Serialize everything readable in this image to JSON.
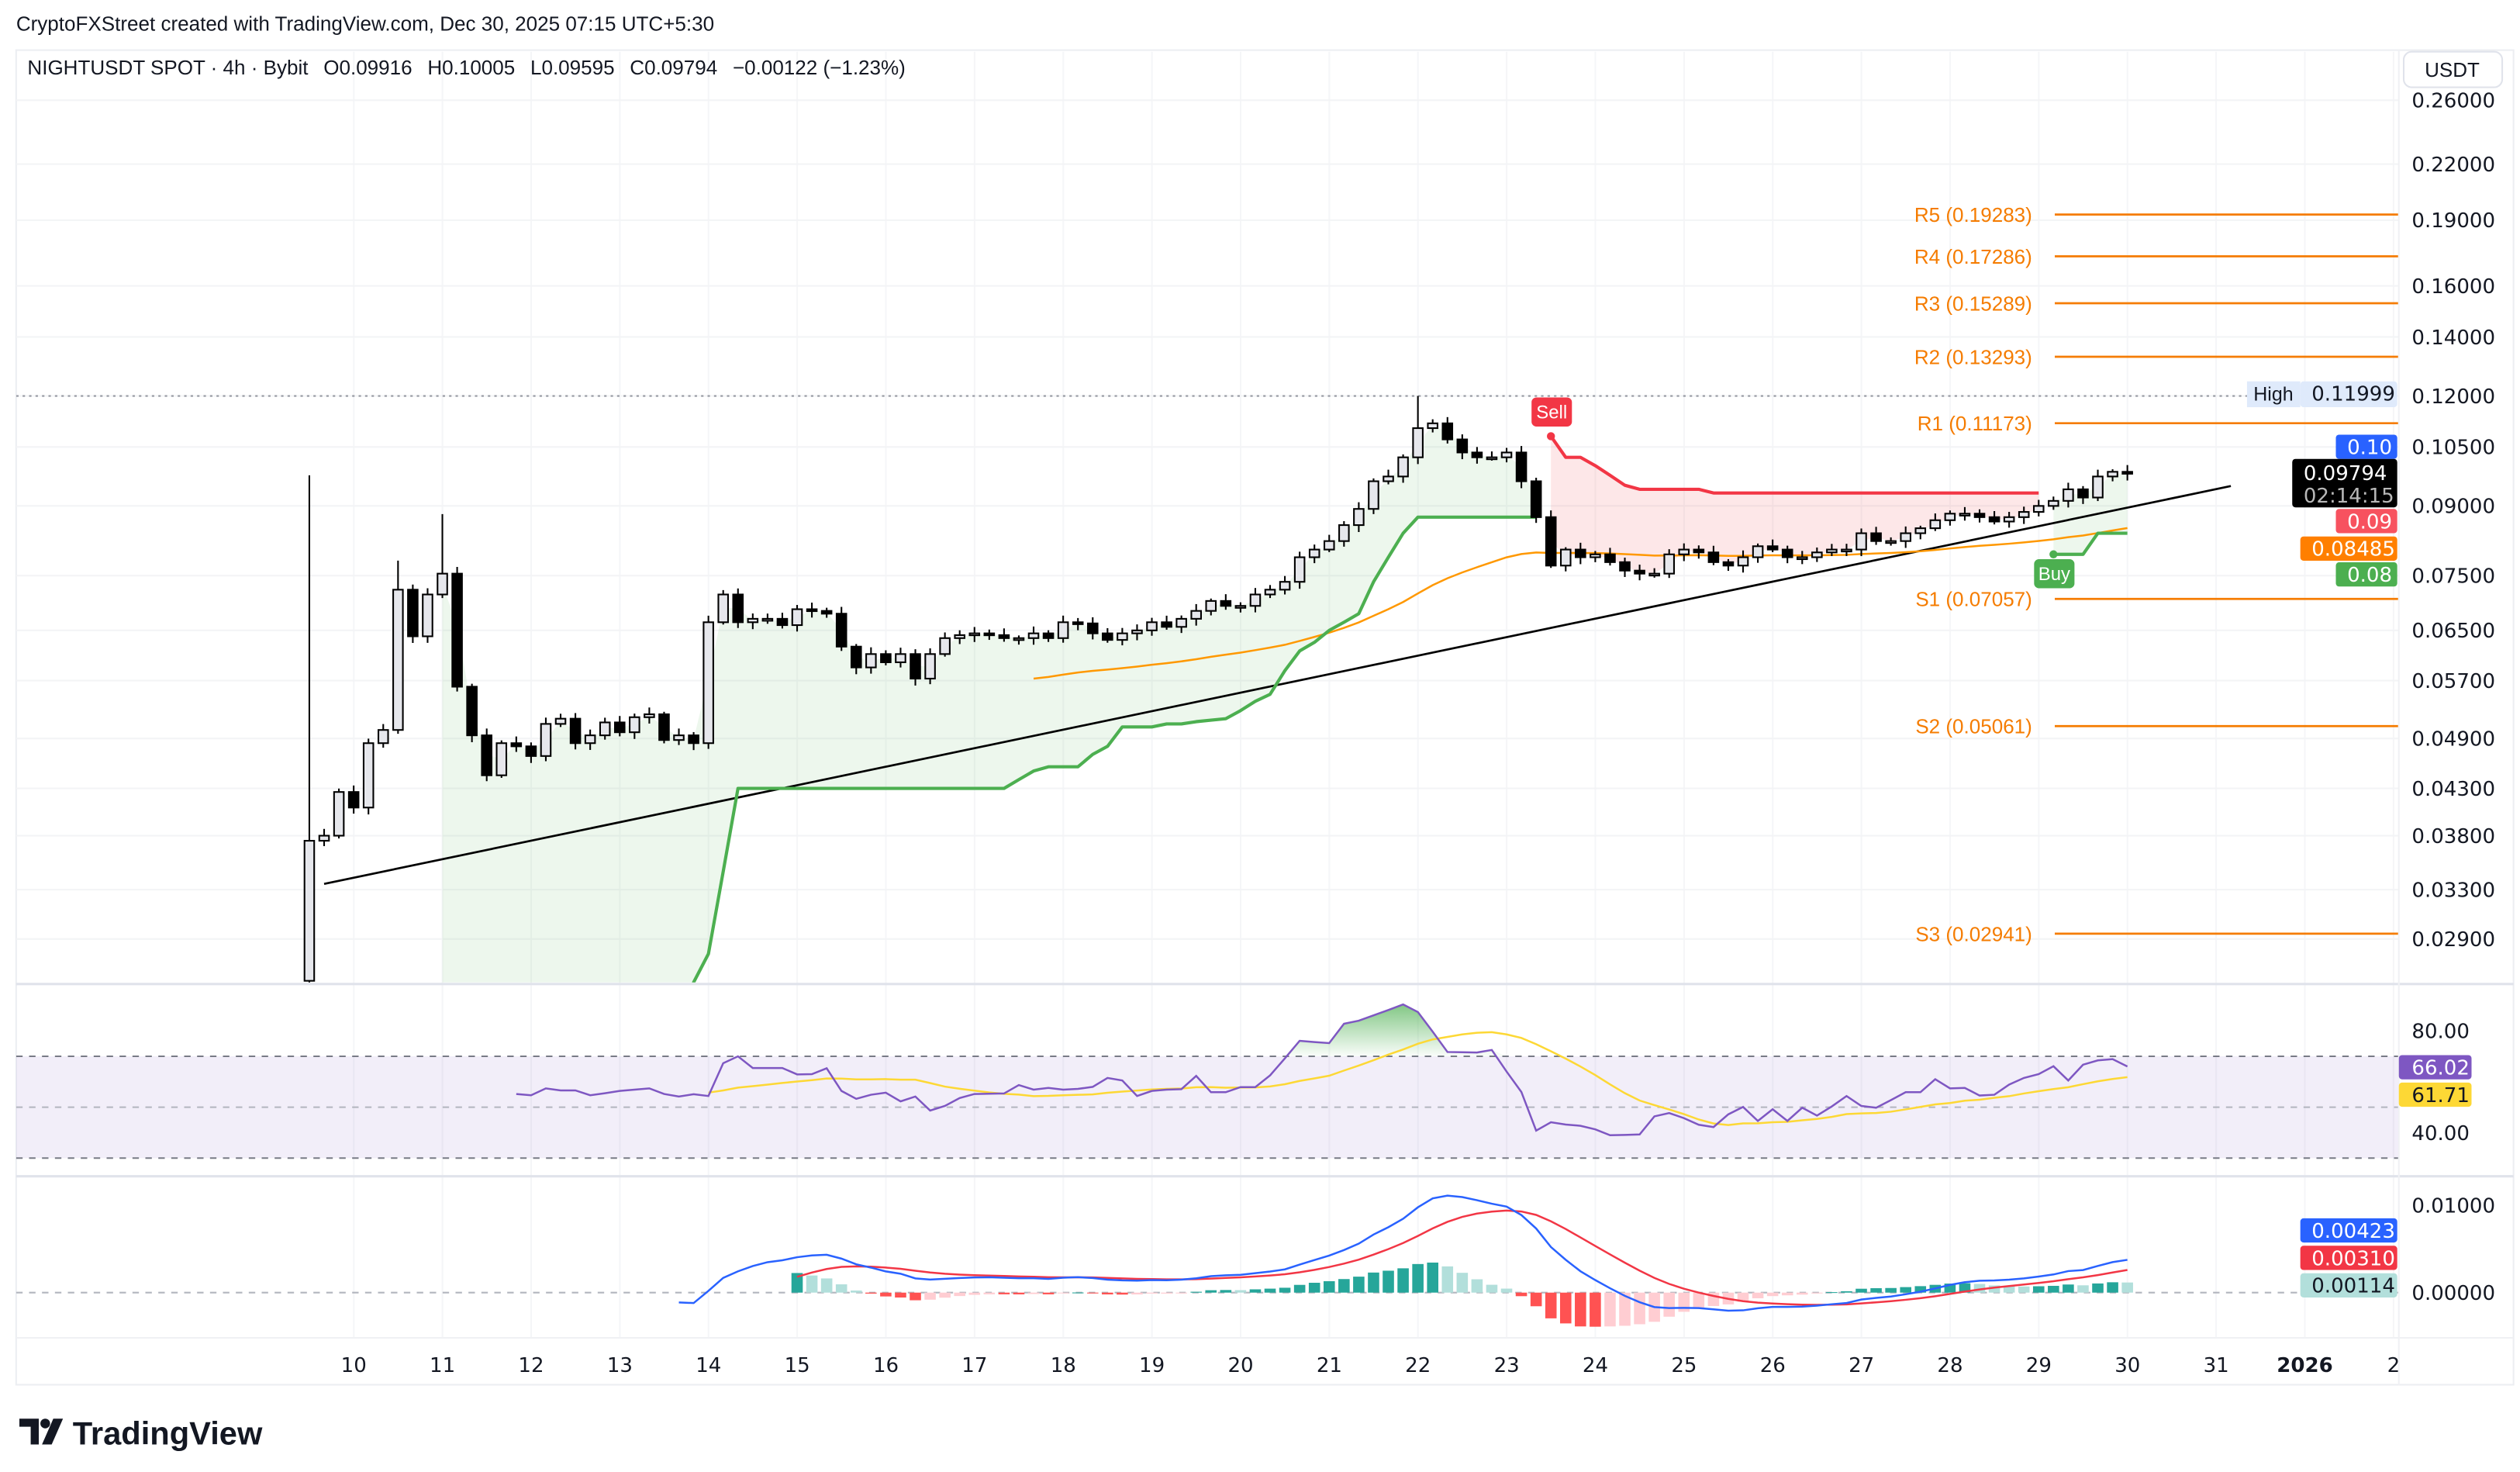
{
  "attribution": "CryptoFXStreet created with TradingView.com, Dec 30, 2025 07:15 UTC+5:30",
  "legend": {
    "symbol": "NIGHTUSDT SPOT · 4h · Bybit",
    "open": "O0.09916",
    "high": "H0.10005",
    "low": "L0.09595",
    "close": "C0.09794",
    "change": "−0.00122 (−1.23%)"
  },
  "currency_button": "USDT",
  "logo_text": "TradingView",
  "colors": {
    "bull_body": "#e6e7ec",
    "bear_body": "#000000",
    "supertrend_up": "#4caf50",
    "supertrend_down": "#f23645",
    "ema": "#ff9800",
    "pivot": "#f57c00",
    "rsi": "#7e57c2",
    "rsi_ma": "#fdd835",
    "macd": "#2962ff",
    "signal": "#f23645",
    "hist_up_strong": "#26a69a",
    "hist_up_weak": "#b2dfdb",
    "hist_down_strong": "#ff5252",
    "hist_down_weak": "#ffcdd2"
  },
  "chart_data": {
    "type": "candlestick",
    "interval": "4h",
    "y_scale": "log",
    "price_axis_ticks": [
      "0.26000",
      "0.22000",
      "0.19000",
      "0.16000",
      "0.14000",
      "0.12000",
      "0.10500",
      "0.09000",
      "0.07500",
      "0.06500",
      "0.05700",
      "0.04900",
      "0.04300",
      "0.03800",
      "0.03300",
      "0.02900"
    ],
    "time_axis_labels": [
      "10",
      "11",
      "12",
      "13",
      "14",
      "15",
      "16",
      "17",
      "18",
      "19",
      "20",
      "21",
      "22",
      "23",
      "24",
      "25",
      "26",
      "27",
      "28",
      "29",
      "30",
      "31",
      "2026",
      "2"
    ],
    "candles": {
      "first_open": 0.026,
      "close": [
        0.0375,
        0.038,
        0.0426,
        0.0409,
        0.0484,
        0.0501,
        0.0723,
        0.064,
        0.0714,
        0.0754,
        0.0561,
        0.0494,
        0.0445,
        0.0484,
        0.048,
        0.0468,
        0.0509,
        0.0516,
        0.0484,
        0.0494,
        0.0511,
        0.0498,
        0.0518,
        0.0522,
        0.0488,
        0.0494,
        0.0484,
        0.0664,
        0.0714,
        0.0664,
        0.067,
        0.067,
        0.0659,
        0.0687,
        0.0684,
        0.0679,
        0.0623,
        0.059,
        0.0611,
        0.0598,
        0.0611,
        0.0573,
        0.0611,
        0.0637,
        0.0642,
        0.0645,
        0.0642,
        0.0637,
        0.0637,
        0.0645,
        0.0637,
        0.0664,
        0.0662,
        0.0645,
        0.0634,
        0.0645,
        0.065,
        0.0664,
        0.0656,
        0.067,
        0.0684,
        0.0702,
        0.0693,
        0.0693,
        0.0714,
        0.0723,
        0.0738,
        0.0787,
        0.0803,
        0.0821,
        0.0856,
        0.0893,
        0.096,
        0.0972,
        0.1022,
        0.1103,
        0.1117,
        0.1071,
        0.1035,
        0.1022,
        0.1022,
        0.1035,
        0.096,
        0.0874,
        0.077,
        0.0803,
        0.0787,
        0.0793,
        0.0777,
        0.076,
        0.0754,
        0.0754,
        0.0793,
        0.0803,
        0.0797,
        0.0777,
        0.077,
        0.0787,
        0.081,
        0.0803,
        0.0787,
        0.0787,
        0.0797,
        0.0803,
        0.0803,
        0.0838,
        0.0821,
        0.0821,
        0.0838,
        0.0849,
        0.0867,
        0.0882,
        0.0882,
        0.0874,
        0.0864,
        0.0874,
        0.0886,
        0.09,
        0.0912,
        0.094,
        0.092,
        0.0972,
        0.0984,
        0.09794
      ],
      "notable_highs": [
        {
          "index": 0,
          "high": 0.0975
        },
        {
          "index": 6,
          "high": 0.078
        },
        {
          "index": 9,
          "high": 0.0881
        },
        {
          "index": 75,
          "high": 0.11999
        }
      ]
    },
    "period_high": {
      "label": "High",
      "value": "0.11999",
      "price": 0.11999
    },
    "pivots": [
      {
        "label": "R5 (0.19283)",
        "price": 0.19283
      },
      {
        "label": "R4 (0.17286)",
        "price": 0.17286
      },
      {
        "label": "R3 (0.15289)",
        "price": 0.15289
      },
      {
        "label": "R2 (0.13293)",
        "price": 0.13293
      },
      {
        "label": "R1 (0.11173)",
        "price": 0.11173
      },
      {
        "label": "S1 (0.07057)",
        "price": 0.07057
      },
      {
        "label": "S2 (0.05061)",
        "price": 0.05061
      },
      {
        "label": "S3 (0.02941)",
        "price": 0.02941
      }
    ],
    "trendline": {
      "from": {
        "index": 1,
        "price": 0.0335
      },
      "to": {
        "index": 130,
        "price": 0.0948
      }
    },
    "supertrend": [
      {
        "direction": "up",
        "start_index": 9,
        "values": [
          0.02,
          0.02,
          0.02,
          0.02,
          0.02,
          0.02,
          0.02,
          0.02,
          0.02,
          0.02,
          0.02,
          0.02,
          0.02,
          0.02,
          0.02,
          0.02,
          0.02,
          0.0259,
          0.0279,
          0.0346,
          0.043,
          0.043,
          0.043,
          0.043,
          0.043,
          0.043,
          0.043,
          0.043,
          0.043,
          0.043,
          0.043,
          0.043,
          0.043,
          0.043,
          0.043,
          0.043,
          0.043,
          0.043,
          0.043,
          0.044,
          0.045,
          0.0455,
          0.0455,
          0.0455,
          0.047,
          0.048,
          0.0505,
          0.0505,
          0.0505,
          0.0509,
          0.0509,
          0.0512,
          0.0514,
          0.0516,
          0.0527,
          0.054,
          0.055,
          0.0585,
          0.0616,
          0.063,
          0.065,
          0.0664,
          0.0679,
          0.0738,
          0.0787,
          0.0838,
          0.0874,
          0.0874,
          0.0874,
          0.0874,
          0.0874,
          0.0874,
          0.0874,
          0.0874,
          0.0874
        ]
      },
      {
        "direction": "down",
        "start_index": 84,
        "values": [
          0.108,
          0.1022,
          0.1022,
          0.1,
          0.0975,
          0.095,
          0.094,
          0.094,
          0.094,
          0.094,
          0.094,
          0.0931,
          0.0931,
          0.0931,
          0.0931,
          0.0931,
          0.0931,
          0.0931,
          0.0931,
          0.0931,
          0.0931,
          0.0931,
          0.0931,
          0.0931,
          0.0931,
          0.0931,
          0.0931,
          0.0931,
          0.0931,
          0.0931,
          0.0931,
          0.0931,
          0.0931,
          0.0931
        ]
      },
      {
        "direction": "up",
        "start_index": 118,
        "values": [
          0.0793,
          0.0793,
          0.0793,
          0.0838,
          0.0838,
          0.0838
        ]
      }
    ],
    "signals": [
      {
        "label": "Sell",
        "index": 84,
        "price": 0.108
      },
      {
        "label": "Buy",
        "index": 118,
        "price": 0.0793
      }
    ],
    "ema_length": 50,
    "price_tags": {
      "blue": "0.10",
      "last_price": "0.09794",
      "countdown": "02:14:15",
      "red": "0.09",
      "ema": "0.08485",
      "green": "0.08"
    },
    "rsi": {
      "axis_ticks": [
        "80.00",
        "40.00"
      ],
      "levels": [
        70,
        50,
        30
      ],
      "start_index": 14,
      "ma_length": 14,
      "values": [
        55.2,
        54.7,
        57.4,
        56.6,
        56.6,
        54.7,
        55.5,
        56.4,
        56.9,
        57.4,
        55.2,
        54.2,
        55.1,
        54.4,
        67.3,
        70.0,
        65.4,
        65.4,
        65.4,
        62.9,
        63.0,
        65.3,
        56.4,
        53.3,
        54.9,
        55.7,
        52.3,
        54.2,
        48.7,
        50.5,
        53.6,
        55.2,
        55.3,
        55.4,
        58.7,
        56.9,
        57.6,
        56.9,
        57.2,
        58.0,
        61.5,
        60.5,
        54.4,
        56.4,
        56.9,
        57.1,
        62.3,
        55.9,
        55.9,
        57.9,
        57.9,
        62.5,
        69.2,
        76.1,
        75.6,
        75.2,
        82.8,
        84.0,
        86.1,
        88.2,
        90.4,
        87.4,
        79.7,
        71.7,
        71.6,
        71.5,
        72.5,
        64.0,
        56.0,
        40.8,
        44.1,
        43.2,
        42.7,
        41.3,
        39.0,
        39.1,
        39.3,
        46.4,
        47.7,
        45.7,
        43.1,
        42.2,
        47.2,
        50.1,
        44.6,
        49.2,
        44.6,
        49.8,
        46.7,
        50.3,
        54.4,
        50.5,
        49.8,
        52.8,
        55.9,
        55.9,
        61.0,
        57.4,
        57.6,
        54.6,
        54.9,
        58.9,
        61.5,
        63.0,
        66.1,
        60.5,
        66.7,
        68.4,
        68.9,
        66.02
      ],
      "rsi_tag": "66.02",
      "ma_tag": "61.71"
    },
    "macd": {
      "fast": 12,
      "slow": 26,
      "signal": 9,
      "axis_ticks": [
        "0.01000",
        "0.00000"
      ],
      "macd_tag": "0.00423",
      "signal_tag": "0.00310",
      "hist_tag": "0.00114"
    }
  }
}
